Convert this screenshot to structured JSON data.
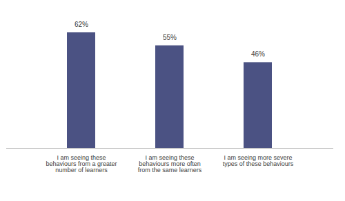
{
  "chart_data": {
    "type": "bar",
    "categories": [
      "I am seeing these behaviours from a greater number of learners",
      "I am seeing these behaviours more often from the same learners",
      "I am seeing more severe types of these behaviours"
    ],
    "values": [
      62,
      55,
      46
    ],
    "value_labels": [
      "62%",
      "55%",
      "46%"
    ],
    "color": "#4b5283",
    "data_labels": true,
    "tick_labels": "x",
    "grid": false
  }
}
